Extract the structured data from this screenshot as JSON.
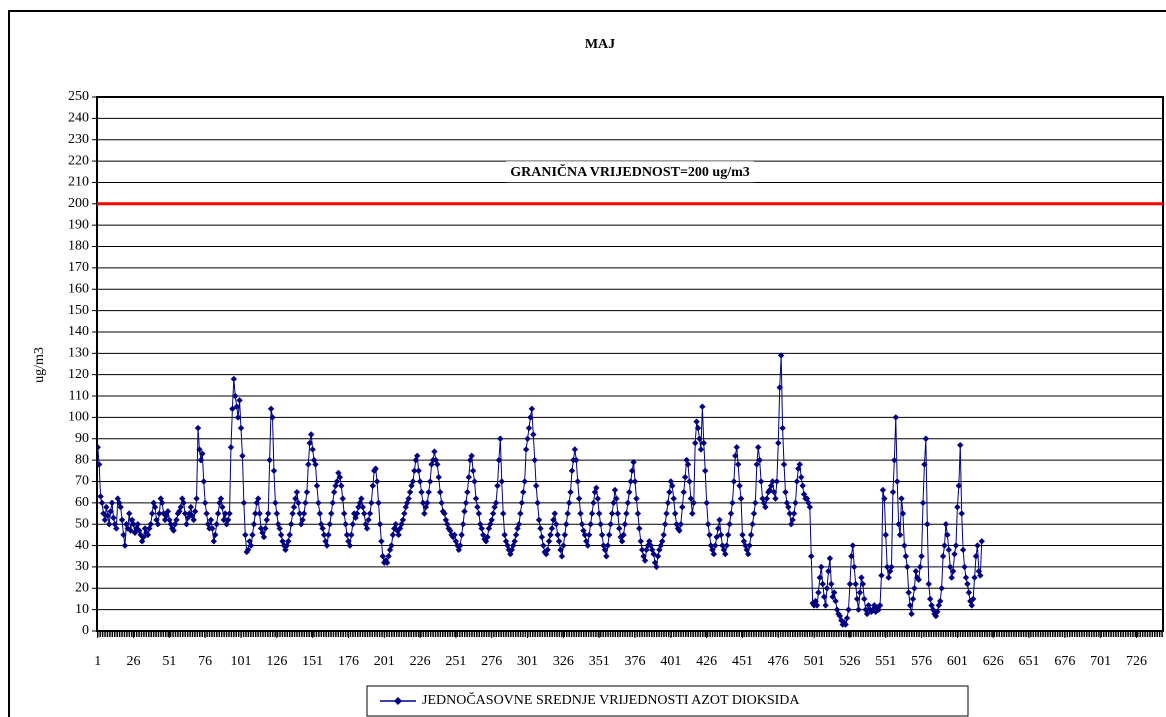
{
  "chart_data": {
    "type": "line",
    "title": "MAJ",
    "y_label": "ug/m3",
    "threshold": {
      "value": 200,
      "label": "GRANIČNA VRIJEDNOST=200 ug/m3",
      "color": "#ff0000"
    },
    "xlim": [
      0.5,
      744.5
    ],
    "xticks": [
      1,
      26,
      51,
      76,
      101,
      126,
      151,
      176,
      201,
      226,
      251,
      276,
      301,
      326,
      351,
      376,
      401,
      426,
      451,
      476,
      501,
      526,
      551,
      576,
      601,
      626,
      651,
      676,
      701,
      726
    ],
    "ylim": [
      0,
      250
    ],
    "yticks": [
      0,
      10,
      20,
      30,
      40,
      50,
      60,
      70,
      80,
      90,
      100,
      110,
      120,
      130,
      140,
      150,
      160,
      170,
      180,
      190,
      200,
      210,
      220,
      230,
      240,
      250
    ],
    "grid": true,
    "legend": "bottom",
    "series": [
      {
        "name": "JEDNOČASOVNE SREDNJE VRIJEDNOSTI AZOT DIOKSIDA",
        "color": "#000080",
        "x": [
          1,
          2,
          3,
          4,
          5,
          6,
          7,
          8,
          9,
          10,
          11,
          12,
          13,
          14,
          15,
          16,
          17,
          18,
          19,
          20,
          21,
          22,
          23,
          24,
          25,
          26,
          27,
          28,
          29,
          30,
          31,
          32,
          33,
          34,
          35,
          36,
          37,
          38,
          39,
          40,
          41,
          42,
          43,
          44,
          45,
          46,
          47,
          48,
          49,
          50,
          51,
          52,
          53,
          54,
          55,
          56,
          57,
          58,
          59,
          60,
          61,
          62,
          63,
          64,
          65,
          66,
          67,
          68,
          69,
          70,
          71,
          72,
          73,
          74,
          75,
          76,
          77,
          78,
          79,
          80,
          81,
          82,
          83,
          84,
          85,
          86,
          87,
          88,
          89,
          90,
          91,
          92,
          93,
          94,
          95,
          96,
          97,
          98,
          99,
          100,
          101,
          102,
          103,
          104,
          105,
          106,
          107,
          108,
          109,
          110,
          111,
          112,
          113,
          114,
          115,
          116,
          117,
          118,
          119,
          120,
          121,
          122,
          123,
          124,
          125,
          126,
          127,
          128,
          129,
          130,
          131,
          132,
          133,
          134,
          135,
          136,
          137,
          138,
          139,
          140,
          141,
          142,
          143,
          144,
          145,
          146,
          147,
          148,
          149,
          150,
          151,
          152,
          153,
          154,
          155,
          156,
          157,
          158,
          159,
          160,
          161,
          162,
          163,
          164,
          165,
          166,
          167,
          168,
          169,
          170,
          171,
          172,
          173,
          174,
          175,
          176,
          177,
          178,
          179,
          180,
          181,
          182,
          183,
          184,
          185,
          186,
          187,
          188,
          189,
          190,
          191,
          192,
          193,
          194,
          195,
          196,
          197,
          198,
          199,
          200,
          201,
          202,
          203,
          204,
          205,
          206,
          207,
          208,
          209,
          210,
          211,
          212,
          213,
          214,
          215,
          216,
          217,
          218,
          219,
          220,
          221,
          222,
          223,
          224,
          225,
          226,
          227,
          228,
          229,
          230,
          231,
          232,
          233,
          234,
          235,
          236,
          237,
          238,
          239,
          240,
          241,
          242,
          243,
          244,
          245,
          246,
          247,
          248,
          249,
          250,
          251,
          252,
          253,
          254,
          255,
          256,
          257,
          258,
          259,
          260,
          261,
          262,
          263,
          264,
          265,
          266,
          267,
          268,
          269,
          270,
          271,
          272,
          273,
          274,
          275,
          276,
          277,
          278,
          279,
          280,
          281,
          282,
          283,
          284,
          285,
          286,
          287,
          288,
          289,
          290,
          291,
          292,
          293,
          294,
          295,
          296,
          297,
          298,
          299,
          300,
          301,
          302,
          303,
          304,
          305,
          306,
          307,
          308,
          309,
          310,
          311,
          312,
          313,
          314,
          315,
          316,
          317,
          318,
          319,
          320,
          321,
          322,
          323,
          324,
          325,
          326,
          327,
          328,
          329,
          330,
          331,
          332,
          333,
          334,
          335,
          336,
          337,
          338,
          339,
          340,
          341,
          342,
          343,
          344,
          345,
          346,
          347,
          348,
          349,
          350,
          351,
          352,
          353,
          354,
          355,
          356,
          357,
          358,
          359,
          360,
          361,
          362,
          363,
          364,
          365,
          366,
          367,
          368,
          369,
          370,
          371,
          372,
          373,
          374,
          375,
          376,
          377,
          378,
          379,
          380,
          381,
          382,
          383,
          384,
          385,
          386,
          387,
          388,
          389,
          390,
          391,
          392,
          393,
          394,
          395,
          396,
          397,
          398,
          399,
          400,
          401,
          402,
          403,
          404,
          405,
          406,
          407,
          408,
          409,
          410,
          411,
          412,
          413,
          414,
          415,
          416,
          417,
          418,
          419,
          420,
          421,
          422,
          423,
          424,
          425,
          426,
          427,
          428,
          429,
          430,
          431,
          432,
          433,
          434,
          435,
          436,
          437,
          438,
          439,
          440,
          441,
          442,
          443,
          444,
          445,
          446,
          447,
          448,
          449,
          450,
          451,
          452,
          453,
          454,
          455,
          456,
          457,
          458,
          459,
          460,
          461,
          462,
          463,
          464,
          465,
          466,
          467,
          468,
          469,
          470,
          471,
          472,
          473,
          474,
          475,
          476,
          477,
          478,
          479,
          480,
          481,
          482,
          483,
          484,
          485,
          486,
          487,
          488,
          489,
          490,
          491,
          492,
          493,
          494,
          495,
          496,
          497,
          498,
          499,
          500,
          501,
          502,
          503,
          504,
          505,
          506,
          507,
          508,
          509,
          510,
          511,
          512,
          513,
          514,
          515,
          516,
          517,
          518,
          519,
          520,
          521,
          522,
          523,
          524,
          525,
          526,
          527,
          528,
          529,
          530,
          531,
          532,
          533,
          534,
          535,
          536,
          537,
          538,
          539,
          540,
          541,
          542,
          543,
          544,
          545,
          546,
          547,
          548,
          549,
          550,
          551,
          552,
          553,
          554,
          555,
          556,
          557,
          558,
          559,
          560,
          561,
          562,
          563,
          564,
          565,
          566,
          567,
          568,
          569,
          570,
          571,
          572,
          573,
          574,
          575,
          576,
          577,
          578,
          579,
          580,
          581,
          582,
          583,
          584,
          585,
          586,
          587,
          588,
          589,
          590,
          591,
          592,
          593,
          594,
          595,
          596,
          597,
          598,
          599,
          600,
          601,
          602,
          603,
          604,
          605,
          606,
          607,
          608,
          609,
          610,
          611,
          612,
          613,
          614,
          615,
          616,
          617,
          618
        ],
        "values": [
          86,
          78,
          63,
          60,
          55,
          52,
          58,
          54,
          50,
          56,
          60,
          53,
          50,
          48,
          62,
          60,
          58,
          52,
          45,
          40,
          50,
          48,
          55,
          47,
          52,
          50,
          46,
          48,
          50,
          47,
          45,
          42,
          44,
          48,
          46,
          45,
          48,
          50,
          55,
          60,
          58,
          52,
          50,
          55,
          62,
          60,
          55,
          52,
          54,
          56,
          52,
          50,
          48,
          47,
          50,
          52,
          55,
          56,
          58,
          62,
          60,
          55,
          50,
          53,
          55,
          58,
          54,
          52,
          56,
          62,
          95,
          85,
          80,
          83,
          70,
          60,
          55,
          50,
          48,
          52,
          48,
          42,
          45,
          50,
          55,
          60,
          62,
          58,
          52,
          55,
          50,
          52,
          55,
          86,
          104,
          118,
          110,
          105,
          100,
          108,
          95,
          82,
          60,
          45,
          37,
          38,
          42,
          40,
          45,
          50,
          55,
          60,
          62,
          55,
          48,
          46,
          44,
          48,
          52,
          55,
          80,
          104,
          100,
          75,
          60,
          55,
          50,
          48,
          45,
          42,
          40,
          38,
          40,
          42,
          45,
          50,
          55,
          58,
          62,
          65,
          60,
          55,
          50,
          52,
          55,
          60,
          65,
          78,
          88,
          92,
          85,
          80,
          78,
          68,
          60,
          55,
          50,
          48,
          45,
          42,
          40,
          45,
          50,
          55,
          60,
          65,
          68,
          70,
          74,
          72,
          68,
          62,
          55,
          50,
          45,
          42,
          40,
          45,
          50,
          55,
          53,
          55,
          58,
          60,
          62,
          58,
          55,
          50,
          48,
          52,
          55,
          60,
          68,
          75,
          76,
          70,
          60,
          50,
          42,
          35,
          32,
          33,
          32,
          35,
          38,
          40,
          45,
          48,
          50,
          47,
          45,
          48,
          50,
          52,
          55,
          58,
          60,
          62,
          65,
          68,
          70,
          75,
          80,
          82,
          75,
          70,
          65,
          60,
          55,
          58,
          60,
          65,
          70,
          78,
          80,
          84,
          80,
          78,
          72,
          65,
          60,
          56,
          55,
          52,
          50,
          48,
          47,
          45,
          44,
          45,
          42,
          40,
          38,
          40,
          45,
          50,
          56,
          60,
          65,
          72,
          80,
          82,
          75,
          70,
          62,
          58,
          55,
          50,
          48,
          45,
          43,
          42,
          44,
          48,
          50,
          52,
          55,
          58,
          60,
          68,
          80,
          90,
          70,
          55,
          45,
          42,
          40,
          38,
          36,
          38,
          40,
          42,
          45,
          48,
          50,
          55,
          60,
          65,
          70,
          85,
          90,
          95,
          100,
          104,
          92,
          80,
          68,
          60,
          52,
          48,
          44,
          40,
          37,
          36,
          38,
          42,
          45,
          48,
          52,
          55,
          50,
          45,
          42,
          38,
          35,
          40,
          45,
          50,
          55,
          60,
          65,
          75,
          80,
          85,
          80,
          70,
          62,
          55,
          50,
          47,
          45,
          42,
          40,
          45,
          50,
          55,
          60,
          65,
          67,
          62,
          55,
          50,
          45,
          40,
          38,
          35,
          40,
          45,
          50,
          55,
          60,
          66,
          62,
          55,
          48,
          44,
          42,
          45,
          50,
          55,
          60,
          65,
          70,
          75,
          79,
          70,
          62,
          55,
          48,
          42,
          38,
          35,
          33,
          38,
          40,
          42,
          40,
          38,
          36,
          32,
          30,
          35,
          38,
          40,
          42,
          45,
          50,
          55,
          60,
          65,
          70,
          68,
          62,
          55,
          50,
          48,
          47,
          50,
          58,
          65,
          72,
          80,
          78,
          70,
          62,
          55,
          60,
          88,
          98,
          95,
          90,
          85,
          105,
          88,
          75,
          60,
          50,
          45,
          40,
          38,
          36,
          40,
          44,
          48,
          52,
          45,
          40,
          38,
          36,
          40,
          45,
          50,
          55,
          60,
          70,
          82,
          86,
          78,
          68,
          62,
          45,
          42,
          40,
          38,
          36,
          40,
          45,
          50,
          55,
          60,
          78,
          86,
          80,
          70,
          62,
          60,
          58,
          62,
          65,
          66,
          68,
          70,
          65,
          62,
          70,
          88,
          114,
          129,
          95,
          78,
          65,
          60,
          58,
          55,
          50,
          52,
          55,
          60,
          70,
          76,
          78,
          72,
          68,
          64,
          62,
          62,
          60,
          58,
          35,
          13,
          12,
          14,
          12,
          18,
          25,
          30,
          22,
          16,
          12,
          20,
          28,
          34,
          22,
          16,
          18,
          14,
          10,
          8,
          7,
          5,
          3,
          4,
          3,
          6,
          10,
          22,
          35,
          40,
          30,
          22,
          15,
          10,
          18,
          25,
          22,
          15,
          10,
          8,
          12,
          10,
          9,
          10,
          12,
          9,
          11,
          10,
          12,
          26,
          66,
          62,
          45,
          30,
          25,
          28,
          30,
          65,
          80,
          100,
          70,
          50,
          45,
          62,
          55,
          40,
          35,
          30,
          18,
          12,
          8,
          15,
          20,
          28,
          25,
          24,
          30,
          35,
          60,
          78,
          90,
          50,
          22,
          15,
          12,
          10,
          8,
          7,
          9,
          12,
          14,
          20,
          35,
          40,
          50,
          45,
          38,
          30,
          25,
          28,
          36,
          40,
          58,
          68,
          87,
          55,
          38,
          30,
          25,
          22,
          18,
          14,
          12,
          15,
          25,
          35,
          40,
          28,
          26,
          42
        ]
      }
    ]
  }
}
